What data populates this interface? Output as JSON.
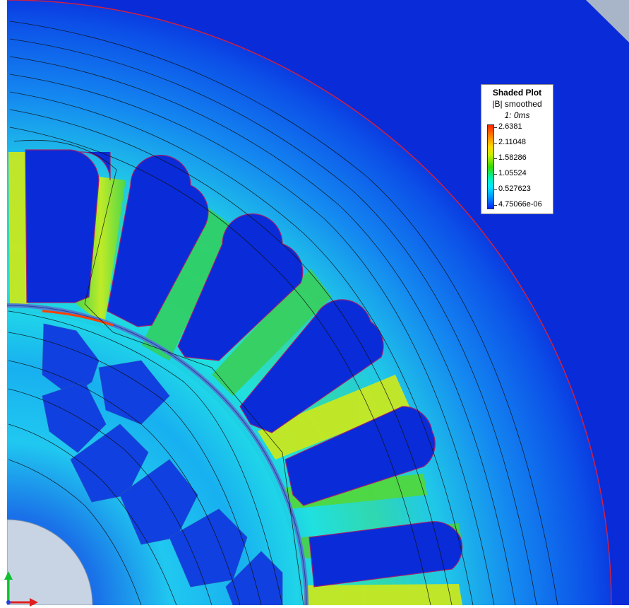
{
  "legend": {
    "title": "Shaded Plot",
    "subtitle": "|B| smoothed",
    "time": "1: 0ms",
    "values": [
      "2.6381",
      "2.11048",
      "1.58286",
      "1.05524",
      "0.527623",
      "4.75066e-06"
    ]
  },
  "colors": {
    "background_outer": "#0a2bd8",
    "low": "#0a2bd8",
    "mid_low": "#1a9cf0",
    "mid": "#20e8e0",
    "mid_high": "#30d850",
    "high": "#d8ec20",
    "peak": "#ff3000",
    "shaft": "#c8d4e4",
    "axis_x": "#e02020",
    "axis_y": "#10c030"
  },
  "icons": {
    "triad": "axis-triad-icon"
  }
}
